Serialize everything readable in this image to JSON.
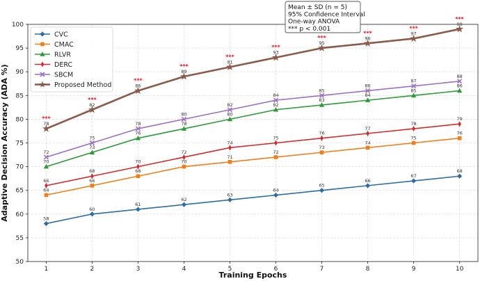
{
  "chart_data": {
    "type": "line",
    "xlabel": "Training Epochs",
    "ylabel": "Adaptive Decision Accuracy (ADA %)",
    "x": [
      1,
      2,
      3,
      4,
      5,
      6,
      7,
      8,
      9,
      10
    ],
    "xticks": [
      "1",
      "2",
      "3",
      "4",
      "5",
      "6",
      "7",
      "8",
      "9",
      "10"
    ],
    "ylim": [
      50,
      100
    ],
    "yticks": [
      "50",
      "55",
      "60",
      "65",
      "70",
      "75",
      "80",
      "85",
      "90",
      "95",
      "100"
    ],
    "grid": true,
    "legend_position": "top-left",
    "series": [
      {
        "name": "CVC",
        "color": "#2e6da4",
        "marker": "diamond",
        "values": [
          58,
          60,
          61,
          62,
          63,
          64,
          65,
          66,
          67,
          68
        ],
        "labels": [
          "58",
          "60",
          "61",
          "62",
          "63",
          "64",
          "65",
          "66",
          "67",
          "68"
        ]
      },
      {
        "name": "CMAC",
        "color": "#f07f1a",
        "marker": "square",
        "values": [
          64,
          66,
          68,
          70,
          71,
          72,
          73,
          74,
          75,
          76
        ],
        "labels": [
          "64",
          "66",
          "68",
          "70",
          "71",
          "72",
          "73",
          "74",
          "75",
          "76"
        ]
      },
      {
        "name": "RLVR",
        "color": "#2f9a3a",
        "marker": "triangle",
        "values": [
          70,
          73,
          76,
          78,
          80,
          82,
          83,
          84,
          85,
          86
        ],
        "labels": [
          "70",
          "73",
          "76",
          "78",
          "80",
          "82",
          "83",
          "84",
          "85",
          "86"
        ]
      },
      {
        "name": "DERC",
        "color": "#d42a2a",
        "marker": "thin-diamond",
        "values": [
          66,
          68,
          70,
          72,
          74,
          75,
          76,
          77,
          78,
          79
        ],
        "labels": [
          "66",
          "68",
          "70",
          "72",
          "74",
          "75",
          "76",
          "77",
          "78",
          "79"
        ]
      },
      {
        "name": "SBCM",
        "color": "#9b6fc4",
        "marker": "x",
        "values": [
          72,
          75,
          78,
          80,
          82,
          84,
          85,
          86,
          87,
          88
        ],
        "labels": [
          "72",
          "75",
          "78",
          "80",
          "82",
          "84",
          "85",
          "86",
          "87",
          "88"
        ]
      },
      {
        "name": "Proposed Method",
        "color": "#8c5a4a",
        "marker": "star",
        "values": [
          78,
          82,
          86,
          89,
          91,
          93,
          95,
          96,
          97,
          99
        ],
        "labels": [
          "78",
          "82",
          "86",
          "89",
          "91",
          "93",
          "95",
          "96",
          "97",
          "99"
        ]
      }
    ],
    "significance_marker": "***",
    "annotation": [
      "Mean ± SD (n = 5)",
      "95% Confidence Interval",
      "One-way ANOVA",
      "*** p < 0.001"
    ]
  }
}
